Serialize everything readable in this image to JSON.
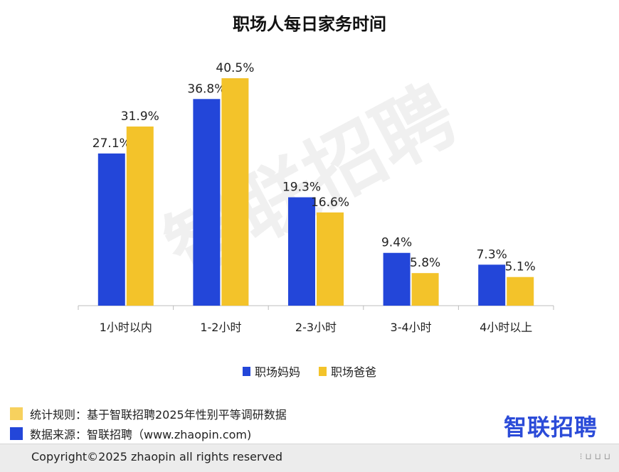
{
  "chart_data": {
    "type": "bar",
    "title": "职场人每日家务时间",
    "categories": [
      "1小时以内",
      "1-2小时",
      "2-3小时",
      "3-4小时",
      "4小时以上"
    ],
    "series": [
      {
        "name": "职场妈妈",
        "values": [
          27.1,
          36.8,
          19.3,
          9.4,
          7.3
        ],
        "color": "#2346d9"
      },
      {
        "name": "职场爸爸",
        "values": [
          31.9,
          40.5,
          16.6,
          5.8,
          5.1
        ],
        "color": "#f3c32a"
      }
    ],
    "value_suffix": "%",
    "ylim": [
      0,
      45
    ],
    "grid": false,
    "legend_position": "bottom"
  },
  "watermark": "智联招聘",
  "footer": {
    "note_color": "#f7d15e",
    "source_color": "#2346d9",
    "note": "统计规则：基于智联招聘2025年性别平等调研数据",
    "source": "数据来源：智联招聘（www.zhaopin.com)",
    "brand": "智联招聘",
    "copyright": "Copyright©2025 zhaopin all rights reserved",
    "corner_mark": "⁝ ⊔ ⊔ ⊔"
  }
}
